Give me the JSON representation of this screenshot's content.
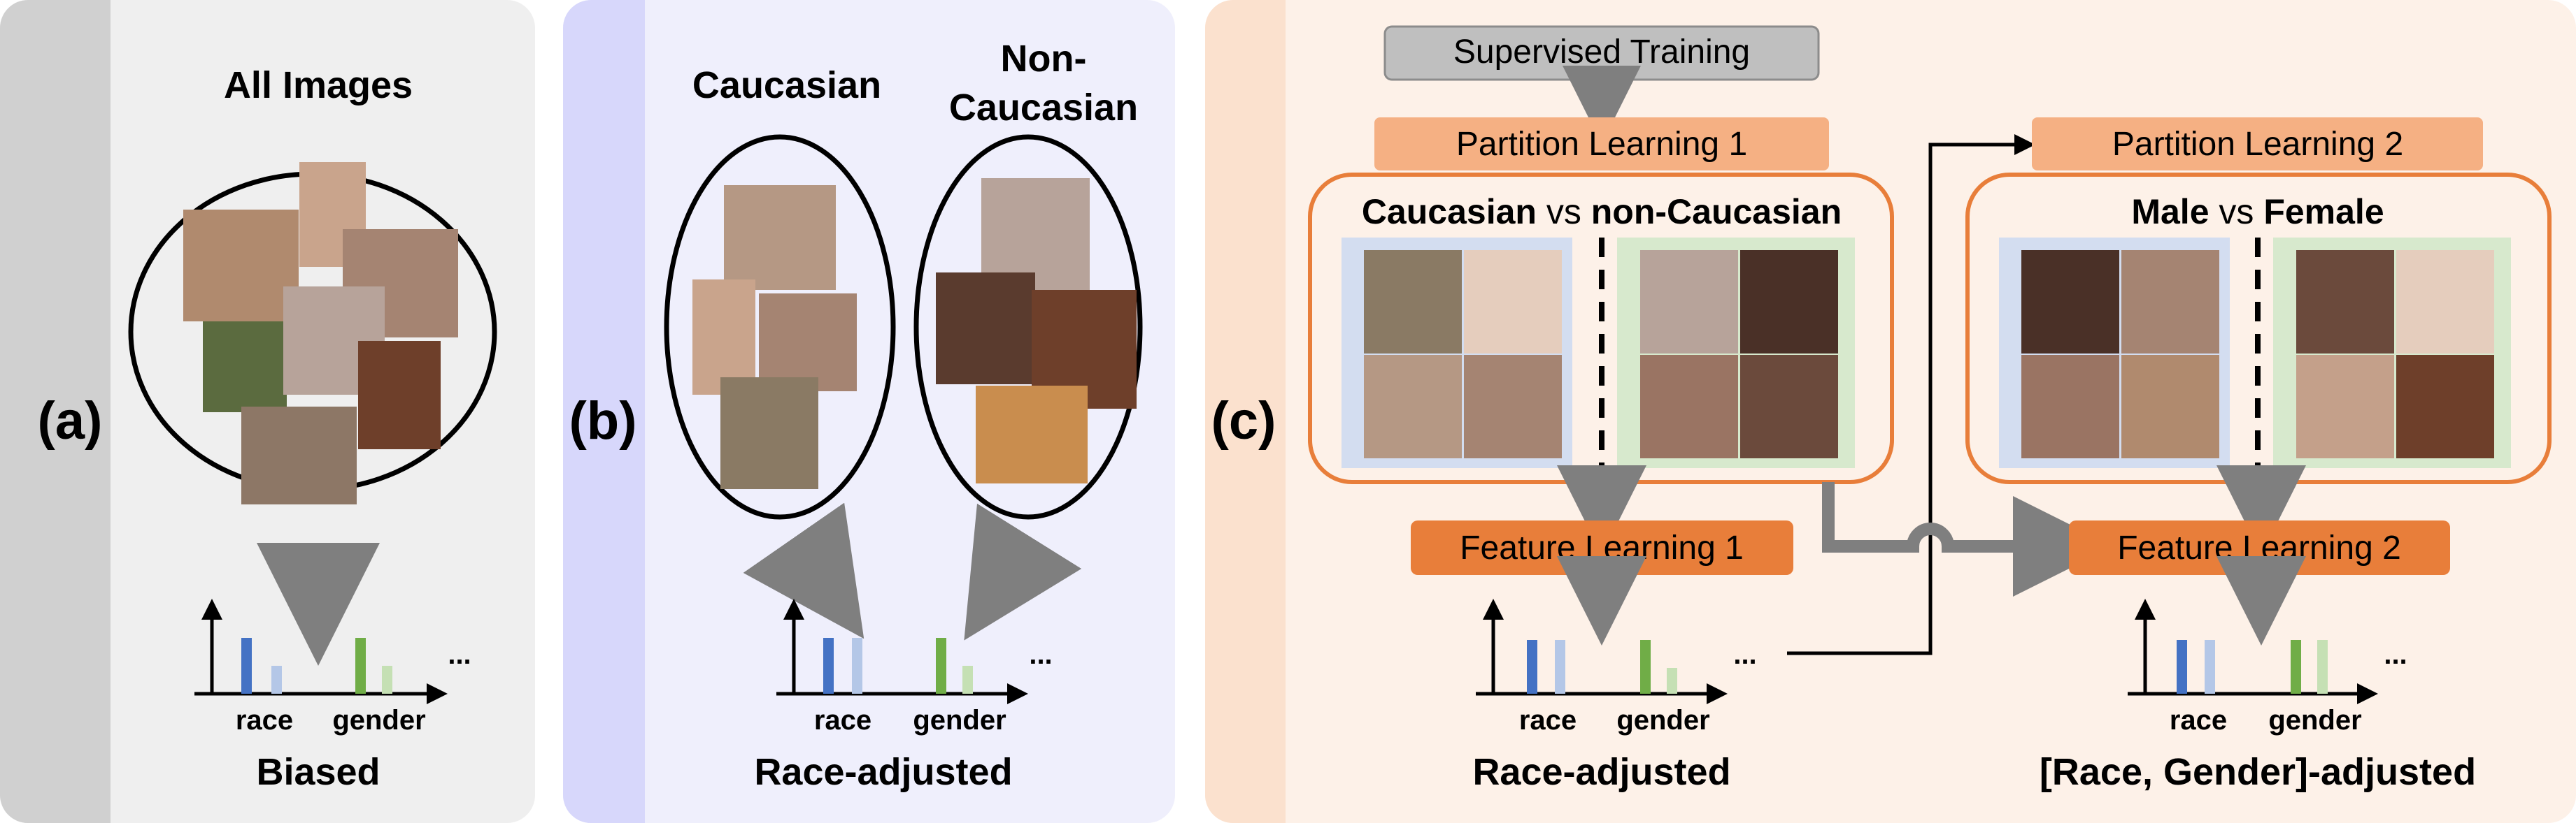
{
  "colors": {
    "panel_a_bg": "#efefef",
    "panel_a_bar": "#d0d0d0",
    "panel_b_bg": "#efeffc",
    "panel_b_bar": "#d7d7fb",
    "panel_c_bg": "#fdf1e8",
    "panel_c_bar": "#fbe1ce",
    "orange_box": "#e87e3a",
    "orange_light": "#f5b083",
    "grey_box": "#bfbfbf",
    "blue_tile": "#d3ddf0",
    "green_tile": "#d7e9cd",
    "bar_blue_dark": "#4472c4",
    "bar_blue_light": "#b4c7e7",
    "bar_green_dark": "#70ad47",
    "bar_green_light": "#c5e0b4",
    "arrow_grey": "#7f7f7f"
  },
  "panel_a": {
    "label": "(a)",
    "title": "All Images",
    "caption": "Biased",
    "chart": {
      "x_label_1": "race",
      "x_label_2": "gender",
      "ellipsis": "..."
    }
  },
  "panel_b": {
    "label": "(b)",
    "group1_title": "Caucasian",
    "group2_title_line1": "Non-",
    "group2_title_line2": "Caucasian",
    "caption": "Race-adjusted",
    "chart": {
      "x_label_1": "race",
      "x_label_2": "gender",
      "ellipsis": "..."
    }
  },
  "panel_c": {
    "label": "(c)",
    "supervised_training": "Supervised Training",
    "partition_learning_1": "Partition Learning 1",
    "partition_learning_2": "Partition Learning 2",
    "feature_learning_1": "Feature Learning 1",
    "feature_learning_2": "Feature Learning 2",
    "partition1_title": {
      "a": "Caucasian",
      "vs": " vs ",
      "b": "non-Caucasian"
    },
    "partition2_title": {
      "a": "Male",
      "vs": " vs ",
      "b": "Female"
    },
    "caption_left": "Race-adjusted",
    "caption_right": "[Race, Gender]-adjusted",
    "chart_left": {
      "x_label_1": "race",
      "x_label_2": "gender",
      "ellipsis": "..."
    },
    "chart_right": {
      "x_label_1": "race",
      "x_label_2": "gender",
      "ellipsis": "..."
    }
  }
}
